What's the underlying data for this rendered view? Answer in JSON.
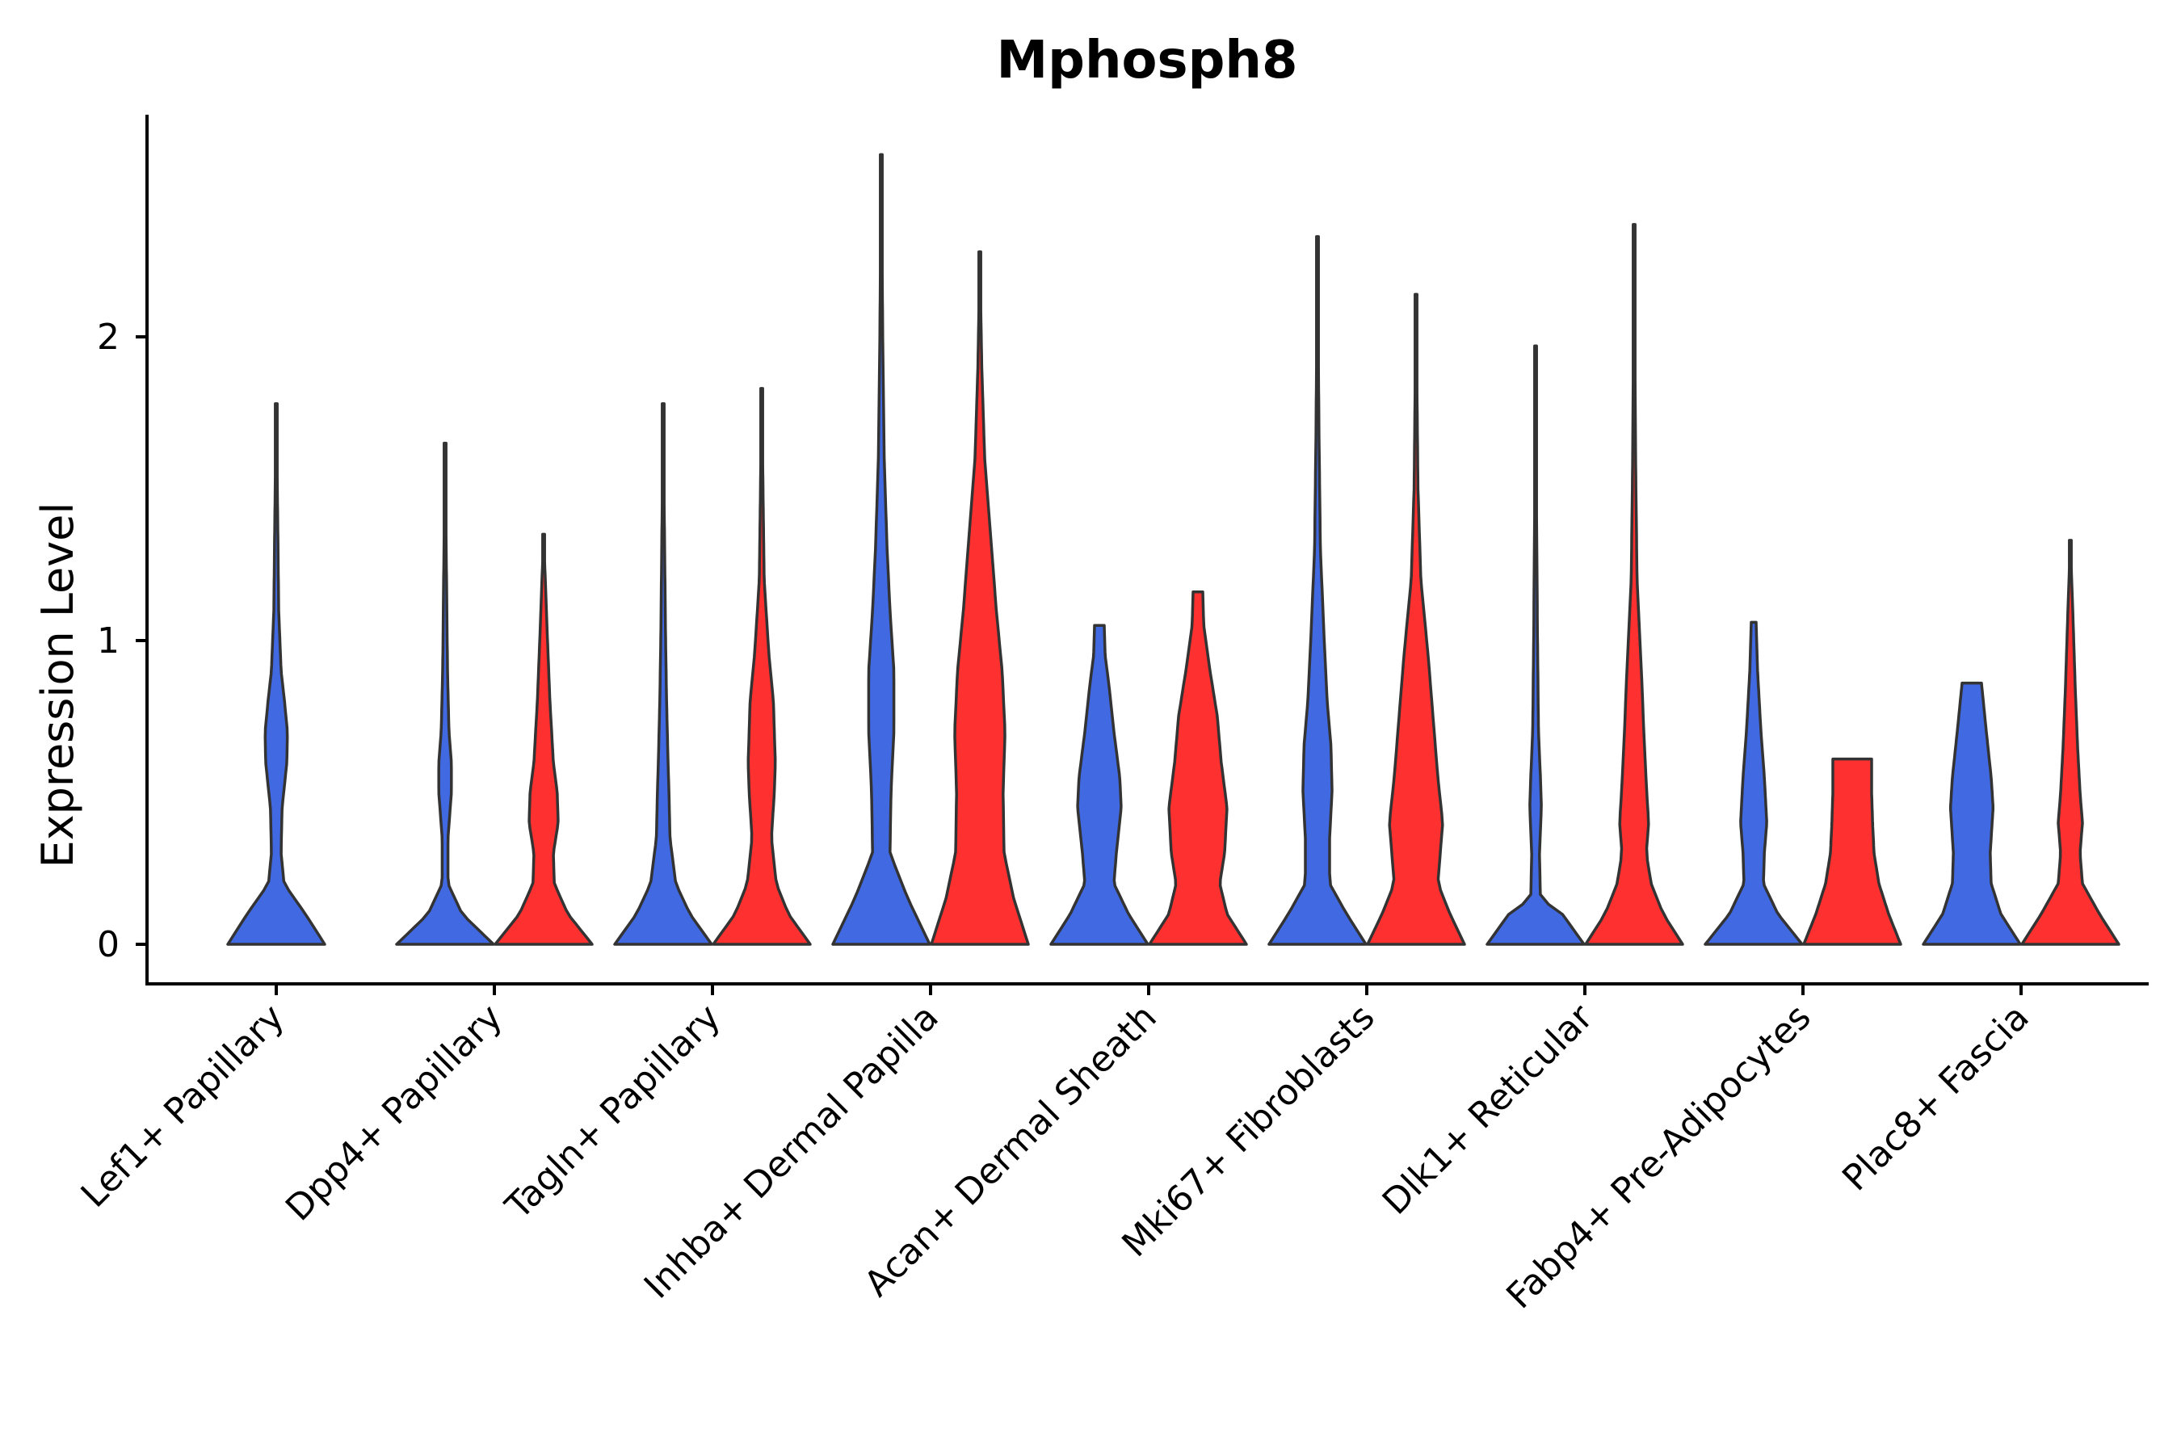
{
  "chart_data": {
    "type": "violin",
    "title": "Mphosph8",
    "xlabel": "",
    "ylabel": "Expression Level",
    "ylim": [
      -0.13,
      2.72
    ],
    "yticks": [
      0,
      1,
      2
    ],
    "legend": "none",
    "series": [
      {
        "name": "group-blue",
        "color": "#4169E1"
      },
      {
        "name": "group-red",
        "color": "#FF3030"
      }
    ],
    "categories": [
      {
        "label": "Lef1+ Papillary",
        "violins": [
          {
            "series": "group-blue",
            "max": 1.78,
            "profile": [
              [
                0,
                1.0
              ],
              [
                0.1,
                0.6
              ],
              [
                0.2,
                0.16
              ],
              [
                0.3,
                0.1
              ],
              [
                0.45,
                0.12
              ],
              [
                0.6,
                0.22
              ],
              [
                0.7,
                0.23
              ],
              [
                0.8,
                0.17
              ],
              [
                0.9,
                0.1
              ],
              [
                1.1,
                0.05
              ],
              [
                1.4,
                0.03
              ],
              [
                1.78,
                0.0
              ]
            ]
          }
        ]
      },
      {
        "label": "Dpp4+ Papillary",
        "violins": [
          {
            "series": "group-blue",
            "max": 1.65,
            "profile": [
              [
                0,
                1.0
              ],
              [
                0.1,
                0.35
              ],
              [
                0.2,
                0.06
              ],
              [
                0.35,
                0.06
              ],
              [
                0.5,
                0.13
              ],
              [
                0.6,
                0.13
              ],
              [
                0.7,
                0.08
              ],
              [
                0.9,
                0.05
              ],
              [
                1.2,
                0.03
              ],
              [
                1.65,
                0.0
              ]
            ]
          },
          {
            "series": "group-red",
            "max": 1.35,
            "profile": [
              [
                0,
                1.0
              ],
              [
                0.1,
                0.5
              ],
              [
                0.2,
                0.22
              ],
              [
                0.3,
                0.2
              ],
              [
                0.4,
                0.3
              ],
              [
                0.5,
                0.28
              ],
              [
                0.6,
                0.2
              ],
              [
                0.8,
                0.13
              ],
              [
                1.0,
                0.08
              ],
              [
                1.35,
                0.0
              ]
            ]
          }
        ]
      },
      {
        "label": "Tagln+ Papillary",
        "violins": [
          {
            "series": "group-blue",
            "max": 1.78,
            "profile": [
              [
                0,
                1.0
              ],
              [
                0.1,
                0.55
              ],
              [
                0.2,
                0.26
              ],
              [
                0.35,
                0.14
              ],
              [
                0.5,
                0.12
              ],
              [
                0.6,
                0.1
              ],
              [
                0.8,
                0.07
              ],
              [
                1.0,
                0.05
              ],
              [
                1.3,
                0.03
              ],
              [
                1.78,
                0.0
              ]
            ]
          },
          {
            "series": "group-red",
            "max": 1.83,
            "profile": [
              [
                0,
                1.0
              ],
              [
                0.1,
                0.55
              ],
              [
                0.2,
                0.3
              ],
              [
                0.35,
                0.2
              ],
              [
                0.5,
                0.26
              ],
              [
                0.6,
                0.28
              ],
              [
                0.8,
                0.24
              ],
              [
                0.95,
                0.15
              ],
              [
                1.2,
                0.05
              ],
              [
                1.83,
                0.0
              ]
            ]
          }
        ]
      },
      {
        "label": "Inhba+ Dermal Papilla",
        "violins": [
          {
            "series": "group-blue",
            "max": 2.6,
            "profile": [
              [
                0,
                1.0
              ],
              [
                0.15,
                0.55
              ],
              [
                0.3,
                0.18
              ],
              [
                0.5,
                0.2
              ],
              [
                0.7,
                0.26
              ],
              [
                0.9,
                0.26
              ],
              [
                1.1,
                0.18
              ],
              [
                1.3,
                0.12
              ],
              [
                1.6,
                0.06
              ],
              [
                2.0,
                0.03
              ],
              [
                2.6,
                0.0
              ]
            ]
          },
          {
            "series": "group-red",
            "max": 2.28,
            "profile": [
              [
                0,
                1.0
              ],
              [
                0.15,
                0.7
              ],
              [
                0.3,
                0.5
              ],
              [
                0.5,
                0.48
              ],
              [
                0.7,
                0.52
              ],
              [
                0.9,
                0.46
              ],
              [
                1.1,
                0.34
              ],
              [
                1.35,
                0.22
              ],
              [
                1.6,
                0.1
              ],
              [
                1.9,
                0.04
              ],
              [
                2.28,
                0.0
              ]
            ]
          }
        ]
      },
      {
        "label": "Acan+ Dermal Sheath",
        "violins": [
          {
            "series": "group-blue",
            "max": 1.05,
            "profile": [
              [
                0,
                1.0
              ],
              [
                0.1,
                0.6
              ],
              [
                0.2,
                0.3
              ],
              [
                0.3,
                0.35
              ],
              [
                0.45,
                0.45
              ],
              [
                0.55,
                0.42
              ],
              [
                0.7,
                0.3
              ],
              [
                0.85,
                0.2
              ],
              [
                0.95,
                0.12
              ],
              [
                1.05,
                0.1
              ]
            ]
          },
          {
            "series": "group-red",
            "max": 1.16,
            "profile": [
              [
                0,
                1.0
              ],
              [
                0.1,
                0.6
              ],
              [
                0.2,
                0.45
              ],
              [
                0.3,
                0.55
              ],
              [
                0.45,
                0.6
              ],
              [
                0.6,
                0.48
              ],
              [
                0.75,
                0.4
              ],
              [
                0.9,
                0.25
              ],
              [
                1.05,
                0.12
              ],
              [
                1.16,
                0.1
              ]
            ]
          }
        ]
      },
      {
        "label": "Mki67+ Fibroblasts",
        "violins": [
          {
            "series": "group-blue",
            "max": 2.33,
            "profile": [
              [
                0,
                1.0
              ],
              [
                0.1,
                0.6
              ],
              [
                0.2,
                0.25
              ],
              [
                0.35,
                0.25
              ],
              [
                0.5,
                0.3
              ],
              [
                0.65,
                0.28
              ],
              [
                0.8,
                0.2
              ],
              [
                1.0,
                0.14
              ],
              [
                1.3,
                0.06
              ],
              [
                1.7,
                0.03
              ],
              [
                2.33,
                0.0
              ]
            ]
          },
          {
            "series": "group-red",
            "max": 2.14,
            "profile": [
              [
                0,
                1.0
              ],
              [
                0.1,
                0.7
              ],
              [
                0.2,
                0.45
              ],
              [
                0.3,
                0.5
              ],
              [
                0.4,
                0.55
              ],
              [
                0.55,
                0.45
              ],
              [
                0.75,
                0.35
              ],
              [
                0.95,
                0.25
              ],
              [
                1.2,
                0.1
              ],
              [
                1.5,
                0.04
              ],
              [
                2.14,
                0.0
              ]
            ]
          }
        ]
      },
      {
        "label": "Dlk1+ Reticular",
        "violins": [
          {
            "series": "group-blue",
            "max": 1.97,
            "profile": [
              [
                0,
                1.0
              ],
              [
                0.1,
                0.55
              ],
              [
                0.15,
                0.1
              ],
              [
                0.3,
                0.08
              ],
              [
                0.45,
                0.12
              ],
              [
                0.55,
                0.1
              ],
              [
                0.7,
                0.06
              ],
              [
                1.0,
                0.04
              ],
              [
                1.4,
                0.02
              ],
              [
                1.97,
                0.0
              ]
            ]
          },
          {
            "series": "group-red",
            "max": 2.37,
            "profile": [
              [
                0,
                1.0
              ],
              [
                0.1,
                0.6
              ],
              [
                0.2,
                0.35
              ],
              [
                0.3,
                0.25
              ],
              [
                0.4,
                0.3
              ],
              [
                0.5,
                0.26
              ],
              [
                0.7,
                0.2
              ],
              [
                0.9,
                0.15
              ],
              [
                1.2,
                0.06
              ],
              [
                1.6,
                0.03
              ],
              [
                2.37,
                0.0
              ]
            ]
          }
        ]
      },
      {
        "label": "Fabp4+ Pre-Adipocytes",
        "violins": [
          {
            "series": "group-blue",
            "max": 1.06,
            "profile": [
              [
                0,
                1.0
              ],
              [
                0.1,
                0.5
              ],
              [
                0.2,
                0.2
              ],
              [
                0.3,
                0.22
              ],
              [
                0.4,
                0.27
              ],
              [
                0.55,
                0.22
              ],
              [
                0.7,
                0.15
              ],
              [
                0.9,
                0.08
              ],
              [
                1.06,
                0.05
              ]
            ]
          },
          {
            "series": "group-red",
            "max": 0.61,
            "profile": [
              [
                0,
                1.0
              ],
              [
                0.1,
                0.75
              ],
              [
                0.2,
                0.55
              ],
              [
                0.3,
                0.45
              ],
              [
                0.4,
                0.42
              ],
              [
                0.5,
                0.4
              ],
              [
                0.61,
                0.4
              ]
            ]
          }
        ]
      },
      {
        "label": "Plac8+ Fascia",
        "violins": [
          {
            "series": "group-blue",
            "max": 0.86,
            "profile": [
              [
                0,
                1.0
              ],
              [
                0.1,
                0.6
              ],
              [
                0.2,
                0.4
              ],
              [
                0.3,
                0.38
              ],
              [
                0.45,
                0.44
              ],
              [
                0.55,
                0.4
              ],
              [
                0.7,
                0.3
              ],
              [
                0.86,
                0.2
              ]
            ]
          },
          {
            "series": "group-red",
            "max": 1.33,
            "profile": [
              [
                0,
                1.0
              ],
              [
                0.1,
                0.6
              ],
              [
                0.2,
                0.25
              ],
              [
                0.3,
                0.2
              ],
              [
                0.4,
                0.25
              ],
              [
                0.5,
                0.2
              ],
              [
                0.65,
                0.15
              ],
              [
                0.85,
                0.1
              ],
              [
                1.1,
                0.05
              ],
              [
                1.33,
                0.0
              ]
            ]
          }
        ]
      }
    ]
  }
}
